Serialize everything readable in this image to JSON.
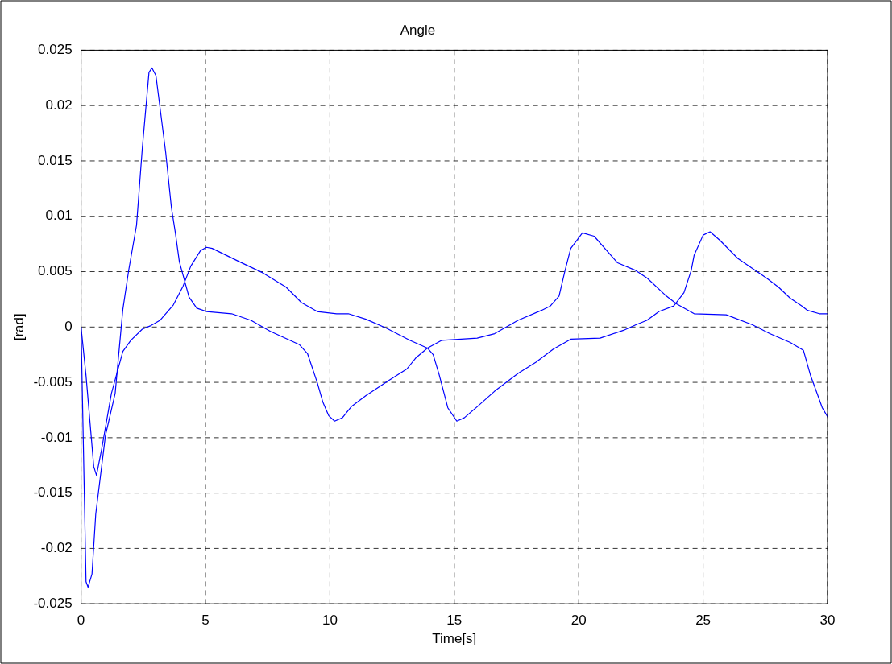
{
  "chart_data": {
    "type": "line",
    "title": "Angle",
    "xlabel": "Time[s]",
    "ylabel": "[rad]",
    "xlim": [
      0,
      30
    ],
    "xticks": [
      0,
      5,
      10,
      15,
      20,
      25,
      30
    ],
    "ylim": [
      -0.025,
      0.025
    ],
    "yticks": [
      -0.025,
      -0.02,
      -0.015,
      -0.01,
      -0.005,
      0,
      0.005,
      0.01,
      0.015,
      0.02,
      0.025
    ],
    "grid": true,
    "legend": false,
    "marker": "none",
    "line_style": "solid",
    "series": [
      {
        "color": "#0000ff",
        "x": [
          0,
          0.2,
          0.28,
          0.44,
          0.59,
          0.98,
          1.37,
          1.68,
          1.92,
          2.23,
          2.46,
          2.73,
          2.85,
          3.01,
          3.4,
          3.63,
          3.79,
          3.95,
          4.34,
          4.65,
          5.04,
          6.05,
          6.83,
          7.61,
          8.78,
          9.1,
          9.49,
          9.72,
          9.95,
          10.19,
          10.5,
          10.86,
          11.45,
          12.39,
          13.09,
          13.45,
          13.92,
          14.5,
          15.92,
          16.62,
          17.56,
          18.5,
          18.86,
          19.21,
          19.45,
          19.68,
          20.15,
          20.62,
          21.56,
          22.3,
          22.76,
          23.47,
          23.93,
          24.64,
          25.93,
          26.98,
          27.68,
          28.5,
          29.03,
          29.32,
          29.79,
          30
        ],
        "values": [
          0,
          -0.023,
          -0.0235,
          -0.0223,
          -0.0169,
          -0.0098,
          -0.006,
          0.0016,
          0.0052,
          0.0092,
          0.0161,
          0.023,
          0.0234,
          0.0227,
          0.0158,
          0.0108,
          0.0085,
          0.0059,
          0.0027,
          0.0017,
          0.0014,
          0.0012,
          0.0006,
          -0.0004,
          -0.0016,
          -0.0024,
          -0.005,
          -0.0068,
          -0.008,
          -0.0085,
          -0.0082,
          -0.0072,
          -0.0062,
          -0.0048,
          -0.0038,
          -0.0028,
          -0.0019,
          -0.0012,
          -0.001,
          -0.0006,
          0.0006,
          0.0015,
          0.0019,
          0.0028,
          0.0051,
          0.0071,
          0.0085,
          0.0082,
          0.0058,
          0.0051,
          0.0044,
          0.0029,
          0.0021,
          0.0012,
          0.0011,
          0.0002,
          -0.0006,
          -0.0014,
          -0.0021,
          -0.0044,
          -0.0073,
          -0.0081
        ]
      },
      {
        "color": "#0000ff",
        "x": [
          0,
          0.2,
          0.51,
          0.62,
          0.83,
          1.22,
          1.68,
          2.0,
          2.46,
          2.78,
          3.17,
          3.71,
          4.1,
          4.41,
          4.8,
          5.04,
          5.27,
          6.36,
          7.3,
          8.24,
          8.86,
          9.49,
          10.27,
          10.74,
          11.45,
          12.27,
          13.21,
          13.92,
          14.15,
          14.39,
          14.74,
          15.1,
          15.4,
          15.92,
          16.62,
          17.56,
          18.27,
          18.98,
          19.68,
          20.86,
          21.8,
          22.3,
          22.74,
          23.23,
          23.82,
          24.23,
          24.52,
          24.64,
          25,
          25.28,
          25.69,
          26.04,
          26.39,
          26.98,
          27.56,
          28.03,
          28.5,
          28.97,
          29.2,
          29.67,
          30
        ],
        "values": [
          0,
          -0.0044,
          -0.0126,
          -0.0134,
          -0.011,
          -0.006,
          -0.0022,
          -0.0012,
          -0.0002,
          0.0001,
          0.0006,
          0.002,
          0.0037,
          0.0055,
          0.0069,
          0.0072,
          0.0071,
          0.0059,
          0.0049,
          0.0036,
          0.0022,
          0.0014,
          0.0012,
          0.0012,
          0.0007,
          -0.0001,
          -0.0012,
          -0.0019,
          -0.0025,
          -0.0043,
          -0.0073,
          -0.0085,
          -0.0082,
          -0.0072,
          -0.0058,
          -0.0042,
          -0.0032,
          -0.002,
          -0.0011,
          -0.001,
          -0.0003,
          0.0002,
          0.0006,
          0.0014,
          0.0019,
          0.0031,
          0.0051,
          0.0065,
          0.0083,
          0.0086,
          0.0078,
          0.007,
          0.0062,
          0.0053,
          0.0044,
          0.0036,
          0.0026,
          0.0019,
          0.0015,
          0.0012,
          0.0012
        ]
      }
    ]
  }
}
